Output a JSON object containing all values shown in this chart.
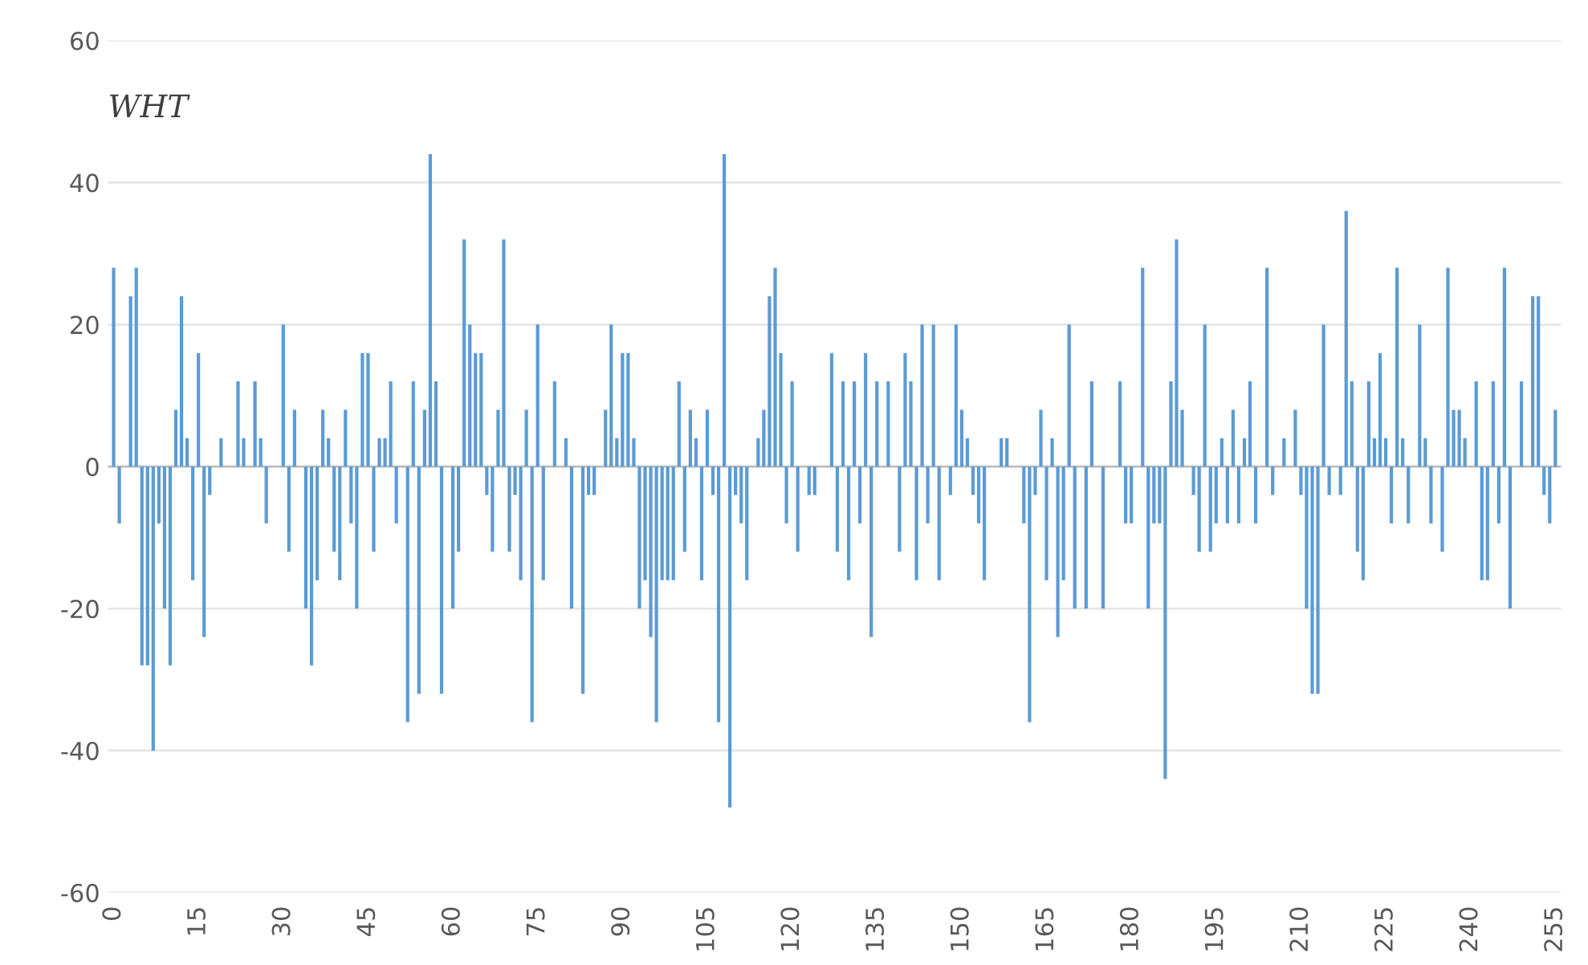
{
  "chart_data": {
    "type": "bar",
    "title": "WHT",
    "categories": [
      "0",
      null,
      null,
      null,
      null,
      null,
      null,
      null,
      null,
      null,
      null,
      null,
      null,
      null,
      null,
      "15",
      null,
      null,
      null,
      null,
      null,
      null,
      null,
      null,
      null,
      null,
      null,
      null,
      null,
      null,
      "30",
      null,
      null,
      null,
      null,
      null,
      null,
      null,
      null,
      null,
      null,
      null,
      null,
      null,
      null,
      "45",
      null,
      null,
      null,
      null,
      null,
      null,
      null,
      null,
      null,
      null,
      null,
      null,
      null,
      null,
      "60",
      null,
      null,
      null,
      null,
      null,
      null,
      null,
      null,
      null,
      null,
      null,
      null,
      null,
      null,
      "75",
      null,
      null,
      null,
      null,
      null,
      null,
      null,
      null,
      null,
      null,
      null,
      null,
      null,
      null,
      "90",
      null,
      null,
      null,
      null,
      null,
      null,
      null,
      null,
      null,
      null,
      null,
      null,
      null,
      null,
      "105",
      null,
      null,
      null,
      null,
      null,
      null,
      null,
      null,
      null,
      null,
      null,
      null,
      null,
      null,
      "120",
      null,
      null,
      null,
      null,
      null,
      null,
      null,
      null,
      null,
      null,
      null,
      null,
      null,
      null,
      "135",
      null,
      null,
      null,
      null,
      null,
      null,
      null,
      null,
      null,
      null,
      null,
      null,
      null,
      null,
      "150",
      null,
      null,
      null,
      null,
      null,
      null,
      null,
      null,
      null,
      null,
      null,
      null,
      null,
      null,
      "165",
      null,
      null,
      null,
      null,
      null,
      null,
      null,
      null,
      null,
      null,
      null,
      null,
      null,
      null,
      "180",
      null,
      null,
      null,
      null,
      null,
      null,
      null,
      null,
      null,
      null,
      null,
      null,
      null,
      null,
      "195",
      null,
      null,
      null,
      null,
      null,
      null,
      null,
      null,
      null,
      null,
      null,
      null,
      null,
      null,
      "210",
      null,
      null,
      null,
      null,
      null,
      null,
      null,
      null,
      null,
      null,
      null,
      null,
      null,
      null,
      "225",
      null,
      null,
      null,
      null,
      null,
      null,
      null,
      null,
      null,
      null,
      null,
      null,
      null,
      null,
      "240",
      null,
      null,
      null,
      null,
      null,
      null,
      null,
      null,
      null,
      null,
      null,
      null,
      null,
      null,
      "255"
    ],
    "values": [
      28,
      -8,
      0,
      24,
      28,
      -28,
      -28,
      -40,
      -8,
      -20,
      -28,
      8,
      24,
      4,
      -16,
      16,
      -24,
      -4,
      0,
      4,
      0,
      0,
      12,
      4,
      0,
      12,
      4,
      -8,
      0,
      0,
      20,
      -12,
      8,
      0,
      -20,
      -28,
      -16,
      8,
      4,
      -12,
      -16,
      8,
      -8,
      -20,
      16,
      16,
      -12,
      4,
      4,
      12,
      -8,
      0,
      -36,
      12,
      -32,
      8,
      44,
      12,
      -32,
      0,
      -20,
      -12,
      32,
      20,
      16,
      16,
      -4,
      -12,
      8,
      32,
      -12,
      -4,
      -16,
      8,
      -36,
      20,
      -16,
      0,
      12,
      0,
      4,
      -20,
      0,
      -32,
      -4,
      -4,
      0,
      8,
      20,
      4,
      16,
      16,
      4,
      -20,
      -16,
      -24,
      -36,
      -16,
      -16,
      -16,
      12,
      -12,
      8,
      4,
      -16,
      8,
      -4,
      -36,
      44,
      -48,
      -4,
      -8,
      -16,
      0,
      4,
      8,
      24,
      28,
      16,
      -8,
      12,
      -12,
      0,
      -4,
      -4,
      0,
      0,
      16,
      -12,
      12,
      -16,
      12,
      -8,
      16,
      -24,
      12,
      0,
      12,
      0,
      -12,
      16,
      12,
      -16,
      20,
      -8,
      20,
      -16,
      0,
      -4,
      20,
      8,
      4,
      -4,
      -8,
      -16,
      0,
      0,
      4,
      4,
      0,
      0,
      -8,
      -36,
      -4,
      8,
      -16,
      4,
      -24,
      -16,
      20,
      -20,
      0,
      -20,
      12,
      0,
      -20,
      0,
      0,
      12,
      -8,
      -8,
      0,
      28,
      -20,
      -8,
      -8,
      -44,
      12,
      32,
      8,
      0,
      -4,
      -12,
      20,
      -12,
      -8,
      4,
      -8,
      8,
      -8,
      4,
      12,
      -8,
      0,
      28,
      -4,
      0,
      4,
      0,
      8,
      -4,
      -20,
      -32,
      -32,
      20,
      -4,
      0,
      -4,
      36,
      12,
      -12,
      -16,
      12,
      4,
      16,
      4,
      -8,
      28,
      4,
      -8,
      0,
      20,
      4,
      -8,
      0,
      -12,
      28,
      8,
      8,
      4,
      0,
      12,
      -16,
      -16,
      12,
      -8,
      28,
      -20,
      0,
      12,
      0,
      24,
      24,
      -4,
      -8,
      8
    ],
    "color": "#5b9bd5",
    "ylim": [
      -60,
      60
    ],
    "yticks": [
      -60,
      -40,
      -20,
      0,
      20,
      40,
      60
    ],
    "grid": "y"
  }
}
